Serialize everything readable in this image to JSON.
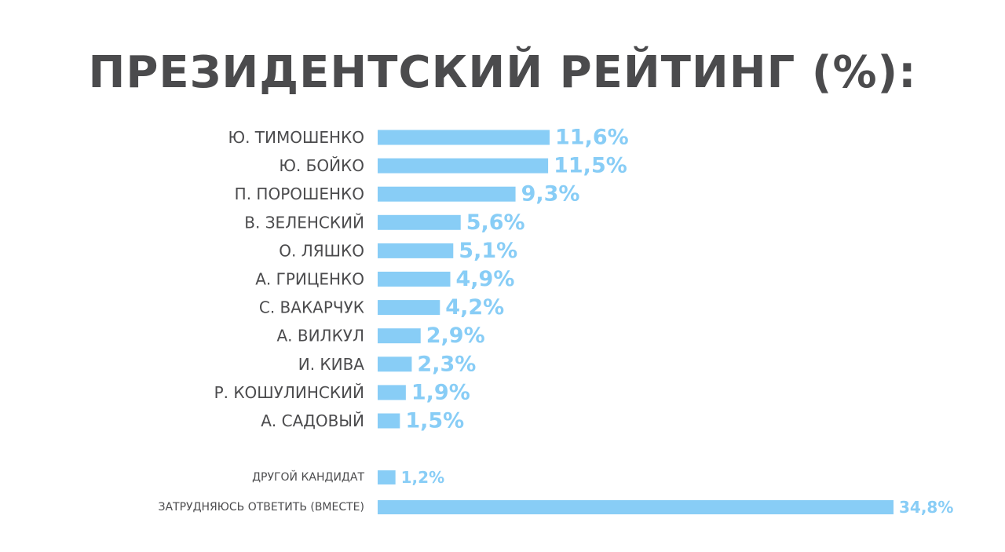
{
  "chart_data": {
    "type": "bar",
    "orientation": "horizontal",
    "title": "ПРЕЗИДЕНТСКИЙ РЕЙТИНГ (%):",
    "categories": [
      "Ю. ТИМОШЕНКО",
      "Ю. БОЙКО",
      "П. ПОРОШЕНКО",
      "В. ЗЕЛЕНСКИЙ",
      "О. ЛЯШКО",
      "А. ГРИЦЕНКО",
      "С. ВАКАРЧУК",
      "А. ВИЛКУЛ",
      "И. КИВА",
      "Р. КОШУЛИНСКИЙ",
      "А. САДОВЫЙ",
      "ДРУГОЙ КАНДИДАТ",
      "ЗАТРУДНЯЮСЬ ОТВЕТИТЬ (ВМЕСТЕ)"
    ],
    "values": [
      11.6,
      11.5,
      9.3,
      5.6,
      5.1,
      4.9,
      4.2,
      2.9,
      2.3,
      1.9,
      1.5,
      1.2,
      34.8
    ],
    "value_labels": [
      "11,6%",
      "11,5%",
      "9,3%",
      "5,6%",
      "5,1%",
      "4,9%",
      "4,2%",
      "2,9%",
      "2,3%",
      "1,9%",
      "1,5%",
      "1,2%",
      "34,8%"
    ],
    "xlabel": "",
    "ylabel": "",
    "xlim": [
      0,
      35
    ],
    "grid": false,
    "bar_color": "#88cdf6",
    "text_color": "#4b4b4d"
  }
}
